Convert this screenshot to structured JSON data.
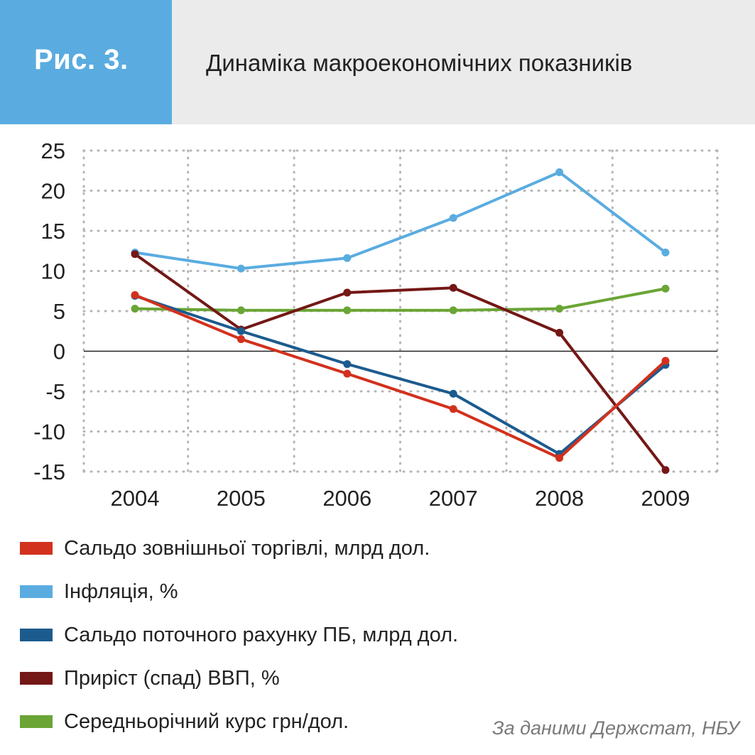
{
  "header": {
    "figure_label": "Рис. 3.",
    "title": "Динаміка макроекономічних показників",
    "badge_color": "#5aace0",
    "background_color": "#ebebeb"
  },
  "chart_data": {
    "type": "line",
    "title": "Динаміка макроекономічних показників",
    "x": [
      "2004",
      "2005",
      "2006",
      "2007",
      "2008",
      "2009"
    ],
    "ylim": [
      -15,
      25
    ],
    "yticks": [
      "25",
      "20",
      "15",
      "10",
      "5",
      "0",
      "-5",
      "-10",
      "-15"
    ],
    "ytick_values": [
      25,
      20,
      15,
      10,
      5,
      0,
      -5,
      -10,
      -15
    ],
    "grid": true,
    "legend_position": "bottom",
    "series": [
      {
        "name": "Сальдо зовнішньої торгівлі, млрд дол.",
        "color": "#d2311d",
        "values": [
          7.0,
          1.5,
          -2.8,
          -7.2,
          -13.3,
          -1.2
        ]
      },
      {
        "name": "Інфляція, %",
        "color": "#5aace0",
        "values": [
          12.3,
          10.3,
          11.6,
          16.6,
          22.3,
          12.3
        ]
      },
      {
        "name": "Сальдо поточного рахунку ПБ, млрд дол.",
        "color": "#1c5b8e",
        "values": [
          6.9,
          2.5,
          -1.6,
          -5.3,
          -12.8,
          -1.7
        ]
      },
      {
        "name": "Приріст (спад)  ВВП, %",
        "color": "#731816",
        "values": [
          12.1,
          2.7,
          7.3,
          7.9,
          2.3,
          -14.8
        ]
      },
      {
        "name": "Середньорічний курс грн/дол.",
        "color": "#6aa535",
        "values": [
          5.3,
          5.1,
          5.1,
          5.1,
          5.3,
          7.8
        ]
      }
    ]
  },
  "source": "За даними Держстат, НБУ"
}
